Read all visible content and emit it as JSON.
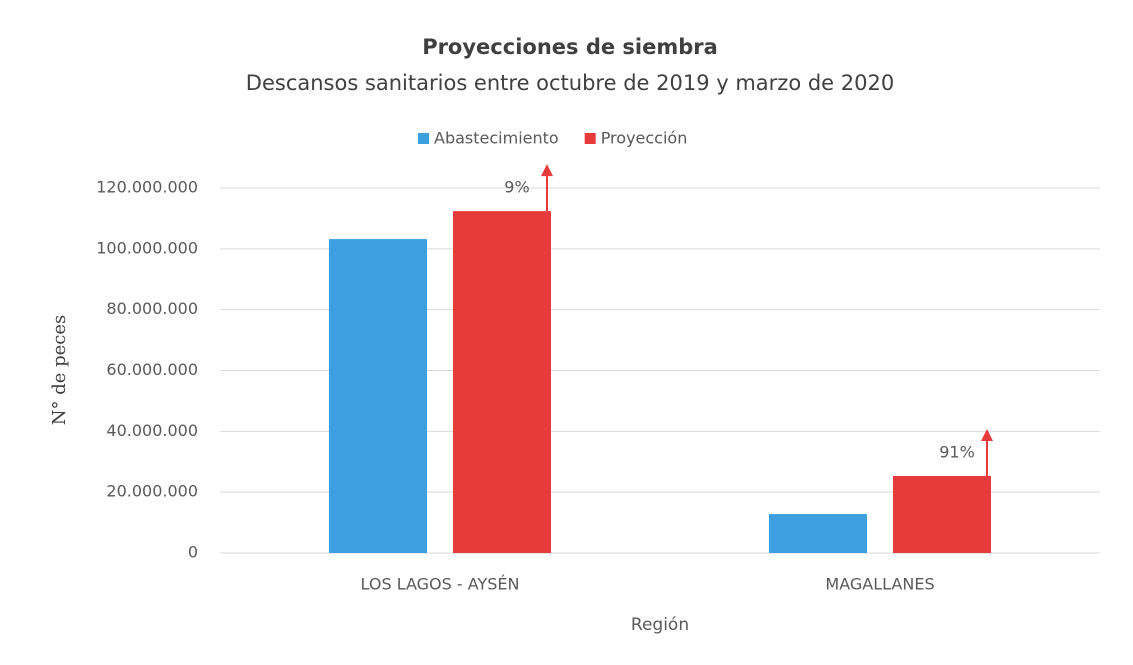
{
  "chart_data": {
    "type": "bar",
    "title": "Proyecciones de siembra",
    "subtitle": "Descansos sanitarios entre octubre de 2019 y marzo de 2020",
    "x_label": "Región",
    "y_label": "N° de peces",
    "categories": [
      "LOS LAGOS - AYSÉN",
      "MAGALLANES"
    ],
    "series": [
      {
        "name": "Abastecimiento",
        "color": "#3d9fe0",
        "values": [
          103200000,
          12800000
        ]
      },
      {
        "name": "Proyección",
        "color": "#e63a3b",
        "values": [
          112400000,
          25300000
        ]
      }
    ],
    "annotations": [
      {
        "text": "9%"
      },
      {
        "text": "91%"
      }
    ],
    "ylim": [
      0,
      120000000
    ],
    "yticks": [
      0,
      {
        "value": 20000000,
        "label": "20.000.000"
      },
      {
        "value": 40000000,
        "label": "40.000.000"
      },
      {
        "value": 60000000,
        "label": "60.000.000"
      },
      {
        "value": 80000000,
        "label": "80.000.000"
      },
      {
        "value": 100000000,
        "label": "100.000.000"
      },
      {
        "value": 120000000,
        "label": "120.000.000"
      }
    ],
    "grid": true,
    "legend": "top"
  }
}
